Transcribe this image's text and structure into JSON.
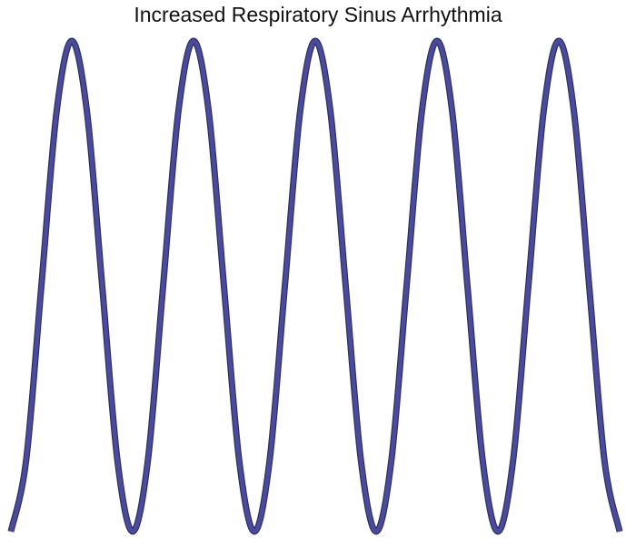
{
  "chart_data": {
    "type": "line",
    "title": "Increased Respiratory Sinus Arrhythmia",
    "x": [
      0,
      0.125,
      0.25,
      0.375,
      0.5,
      0.625,
      0.75,
      0.875,
      1,
      1.125,
      1.25,
      1.375,
      1.5,
      1.625,
      1.75,
      1.875,
      2,
      2.125,
      2.25,
      2.375,
      2.5,
      2.625,
      2.75,
      2.875,
      3,
      3.125,
      3.25,
      3.375,
      3.5,
      3.625,
      3.75,
      3.875,
      4,
      4.125,
      4.25,
      4.375,
      4.5,
      4.625,
      4.75,
      4.875,
      5
    ],
    "values": [
      -1,
      -0.71,
      0,
      0.71,
      1,
      0.71,
      0,
      -0.71,
      -1,
      -0.71,
      0,
      0.71,
      1,
      0.71,
      0,
      -0.71,
      -1,
      -0.71,
      0,
      0.71,
      1,
      0.71,
      0,
      -0.71,
      -1,
      -0.71,
      0,
      0.71,
      1,
      0.71,
      0,
      -0.71,
      -1,
      -0.71,
      0,
      0.71,
      1,
      0.71,
      0,
      -0.71,
      -1
    ],
    "color": "#4b4b99",
    "xlim": [
      0,
      5
    ],
    "ylim": [
      -1,
      1
    ]
  }
}
